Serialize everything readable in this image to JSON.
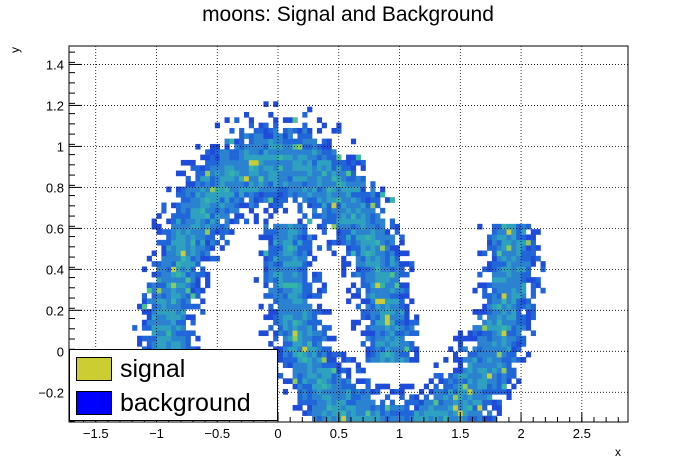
{
  "chart_data": {
    "type": "heatmap",
    "title": "moons: Signal and Background",
    "xlabel": "x",
    "ylabel": "y",
    "xlim": [
      -1.72,
      2.88
    ],
    "ylim": [
      -0.345,
      1.49
    ],
    "x_ticks": [
      -1.5,
      -1,
      -0.5,
      0,
      0.5,
      1,
      1.5,
      2,
      2.5
    ],
    "x_tick_labels": [
      "−1.5",
      "−1",
      "−0.5",
      "0",
      "0.5",
      "1",
      "1.5",
      "2",
      "2.5"
    ],
    "y_ticks": [
      -0.2,
      0,
      0.2,
      0.4,
      0.6,
      0.8,
      1,
      1.2,
      1.4
    ],
    "y_tick_labels": [
      "−0.2",
      "0",
      "0.2",
      "0.4",
      "0.6",
      "0.8",
      "1",
      "1.2",
      "1.4"
    ],
    "grid": true,
    "legend_position": "bottom-left",
    "series": [
      {
        "name": "signal",
        "color": "#cccc33"
      },
      {
        "name": "background",
        "color": "#0000ff"
      }
    ],
    "density_description": "two interleaving moon-shaped clusters: upper arc centered near (0, 0.5) radius ~0.9, lower arc centered near (1, 0) radius ~0.9 opening upward",
    "palette": [
      "#1e4bd8",
      "#2066d8",
      "#2a82d0",
      "#2ea0c0",
      "#35b4a8",
      "#4cc28e",
      "#8ec860",
      "#c8cc38"
    ]
  }
}
